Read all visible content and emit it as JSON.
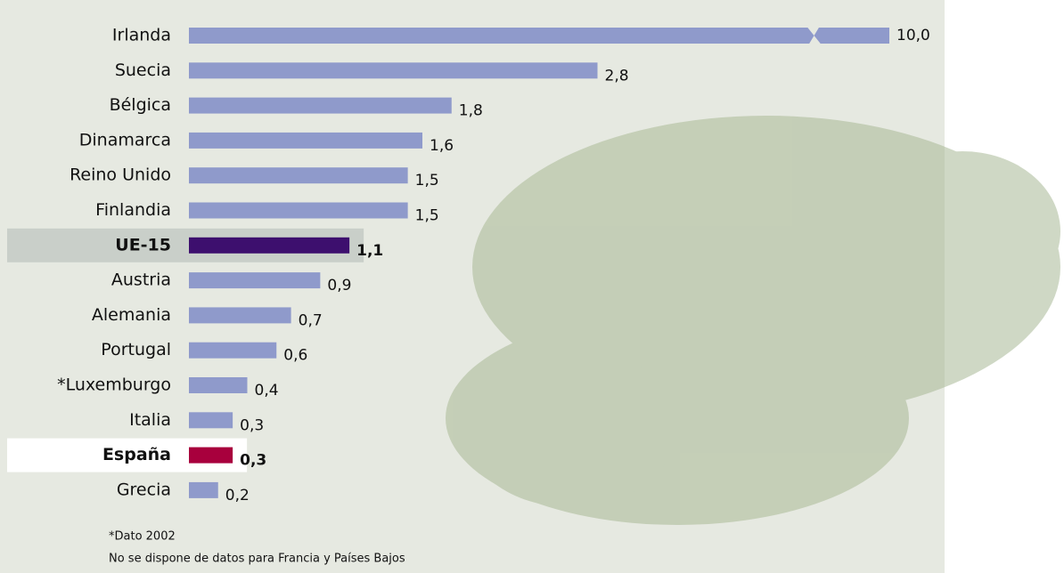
{
  "chart_data": {
    "type": "bar",
    "orientation": "horizontal",
    "categories": [
      "Irlanda",
      "Suecia",
      "Bélgica",
      "Dinamarca",
      "Reino Unido",
      "Finlandia",
      "UE-15",
      "Austria",
      "Alemania",
      "Portugal",
      "*Luxemburgo",
      "Italia",
      "España",
      "Grecia"
    ],
    "values": [
      10.0,
      2.8,
      1.8,
      1.6,
      1.5,
      1.5,
      1.1,
      0.9,
      0.7,
      0.6,
      0.4,
      0.3,
      0.3,
      0.2
    ],
    "value_labels": [
      "10,0",
      "2,8",
      "1,8",
      "1,6",
      "1,5",
      "1,5",
      "1,1",
      "0,9",
      "0,7",
      "0,6",
      "0,4",
      "0,3",
      "0,3",
      "0,2"
    ],
    "colors": [
      "#8f9acb",
      "#8f9acb",
      "#8f9acb",
      "#8f9acb",
      "#8f9acb",
      "#8f9acb",
      "#3d0f6e",
      "#8f9acb",
      "#8f9acb",
      "#8f9acb",
      "#8f9acb",
      "#8f9acb",
      "#a8003d",
      "#8f9acb"
    ],
    "row_backgrounds": [
      null,
      null,
      null,
      null,
      null,
      null,
      "#c9cfc9",
      null,
      null,
      null,
      null,
      null,
      "#ffffff",
      null
    ],
    "xlim": [
      0,
      4.8
    ],
    "notes": [
      "*Dato 2002",
      "No se dispone de datos para Francia y Países Bajos"
    ]
  }
}
